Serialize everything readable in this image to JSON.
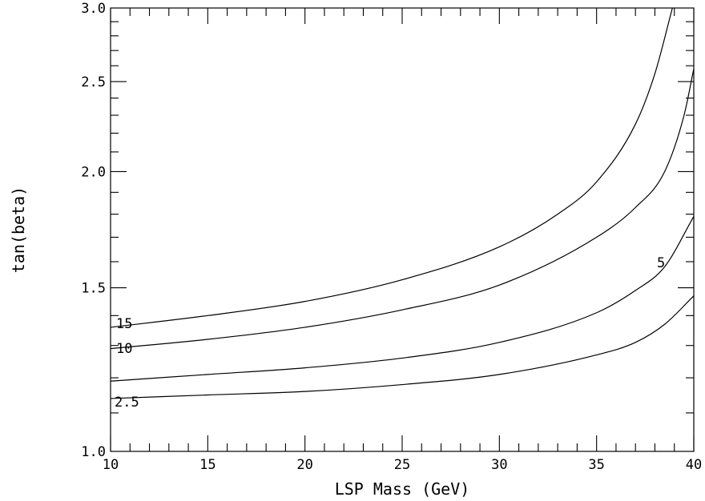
{
  "chart_data": {
    "type": "line",
    "title": "",
    "xlabel": "LSP Mass (GeV)",
    "ylabel": "tan(beta)",
    "xlim": [
      10,
      40
    ],
    "ylim": [
      1.0,
      3.0
    ],
    "yscale": "log",
    "x_ticks": [
      "10",
      "15",
      "20",
      "25",
      "30",
      "35",
      "40"
    ],
    "y_ticks": [
      "1.0",
      "1.5",
      "2.0",
      "2.5",
      "3.0"
    ],
    "grid": false,
    "series": [
      {
        "name": "15",
        "x": [
          10,
          15,
          20,
          25,
          30,
          33,
          35,
          37,
          38,
          38.9
        ],
        "y": [
          1.36,
          1.4,
          1.45,
          1.53,
          1.66,
          1.8,
          1.95,
          2.25,
          2.55,
          3.0
        ]
      },
      {
        "name": "10",
        "x": [
          10,
          15,
          20,
          25,
          30,
          35,
          37,
          38.5,
          39.5,
          40
        ],
        "y": [
          1.29,
          1.32,
          1.36,
          1.42,
          1.51,
          1.7,
          1.83,
          2.0,
          2.3,
          2.58
        ]
      },
      {
        "name": "5",
        "x": [
          10,
          15,
          20,
          25,
          30,
          35,
          37,
          38.5,
          40
        ],
        "y": [
          1.19,
          1.21,
          1.23,
          1.26,
          1.31,
          1.41,
          1.49,
          1.58,
          1.79
        ]
      },
      {
        "name": "2.5",
        "x": [
          10,
          15,
          20,
          25,
          30,
          35,
          37,
          38.5,
          40
        ],
        "y": [
          1.14,
          1.15,
          1.16,
          1.18,
          1.21,
          1.27,
          1.31,
          1.37,
          1.47
        ]
      }
    ],
    "annotations": [
      "15",
      "10",
      "5",
      "2.5"
    ]
  }
}
